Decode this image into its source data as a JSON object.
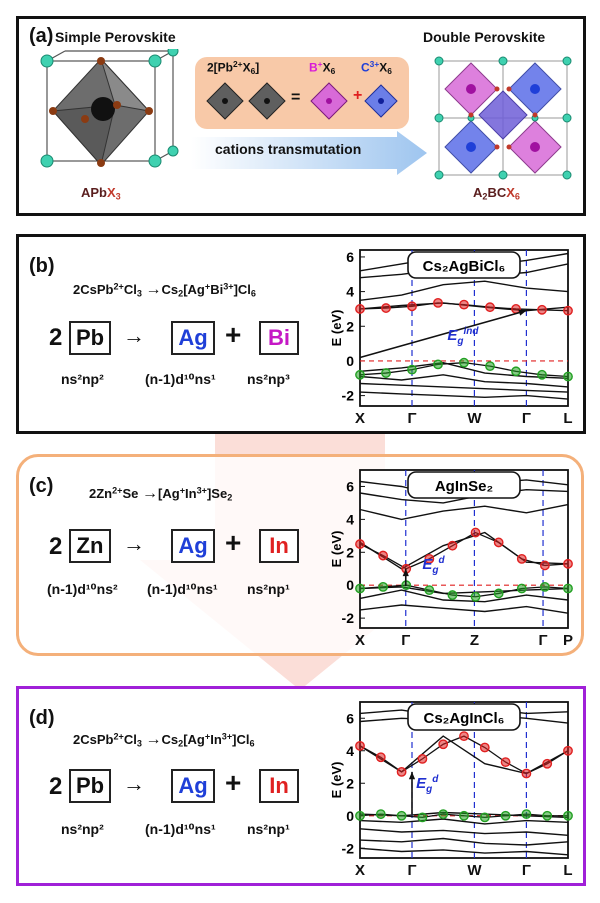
{
  "background_arrow_color": "#f7b5a8",
  "panel_a": {
    "label": "(a)",
    "left_title": "Simple Perovskite",
    "right_title": "Double Perovskite",
    "left_formula": {
      "prefix": "APb",
      "x": "X",
      "x_sub": "3"
    },
    "right_formula": {
      "prefix": "A",
      "sub1": "2",
      "mid": "BC",
      "x": "X",
      "x_sub": "6"
    },
    "equation": {
      "coef": "2[Pb",
      "charge": "2+",
      "x": "X",
      "x_sub": "6",
      "close": "]",
      "eq": "=",
      "b": "B",
      "b_charge": "+",
      "bx": "X",
      "bx_sub": "6",
      "plus": "+",
      "c": "C",
      "c_charge": "3+",
      "cx": "X",
      "cx_sub": "6"
    },
    "arrow_text": "cations transmutation",
    "colors": {
      "equation_bg": "#f8c9a8",
      "arrow": "#9ec5ef",
      "x_red": "#c0392b",
      "magenta": "#d81bd8",
      "blue": "#1f3fd8",
      "cyan": "#3fd1b0"
    }
  },
  "panel_b": {
    "label": "(b)",
    "reaction": {
      "lhs": "2CsPb",
      "lhs_charge": "2+",
      "lhs_cl": "Cl",
      "lhs_cl_sub": "3",
      "arrow": "→",
      "rhs": "Cs",
      "rhs_sub": "2",
      "rhs_br": "[Ag",
      "rhs_ag_charge": "+",
      "rhs_bi": "Bi",
      "rhs_bi_charge": "3+",
      "rhs_close": "]Cl",
      "rhs_cl_sub": "6"
    },
    "coef": "2",
    "from": "Pb",
    "to1": "Ag",
    "plus": "+",
    "to2": "Bi",
    "arrow": "→",
    "config_from": "ns²np²",
    "config_to1": "(n-1)d¹⁰ns¹",
    "config_to2": "ns²np³",
    "box_colors": {
      "to1": "#1f3fd8",
      "to2": "#c518c5"
    },
    "chart_title": "Cs₂AgBiCl₆",
    "gap_label": "E",
    "gap_sub": "g",
    "gap_sup": "ind"
  },
  "panel_c": {
    "label": "(c)",
    "reaction": {
      "lhs": "2Zn",
      "lhs_charge": "2+",
      "lhs_se": "Se",
      "arrow": "→",
      "rhs": "[Ag",
      "rhs_ag_charge": "+",
      "rhs_in": "In",
      "rhs_in_charge": "3+",
      "rhs_close": "]Se",
      "rhs_sub": "2"
    },
    "coef": "2",
    "from": "Zn",
    "to1": "Ag",
    "plus": "+",
    "to2": "In",
    "arrow": "→",
    "config_from": "(n-1)d¹⁰ns²",
    "config_to1": "(n-1)d¹⁰ns¹",
    "config_to2": "ns²np¹",
    "box_colors": {
      "to1": "#1f3fd8",
      "to2": "#e02020"
    },
    "chart_title": "AgInSe₂",
    "gap_label": "E",
    "gap_sub": "g",
    "gap_sup": "d",
    "border_color": "#f4b07a"
  },
  "panel_d": {
    "label": "(d)",
    "reaction": {
      "lhs": "2CsPb",
      "lhs_charge": "2+",
      "lhs_cl": "Cl",
      "lhs_cl_sub": "3",
      "arrow": "→",
      "rhs": "Cs",
      "rhs_sub": "2",
      "rhs_br": "[Ag",
      "rhs_ag_charge": "+",
      "rhs_in": "In",
      "rhs_in_charge": "3+",
      "rhs_close": "]Cl",
      "rhs_cl_sub": "6"
    },
    "coef": "2",
    "from": "Pb",
    "to1": "Ag",
    "plus": "+",
    "to2": "In",
    "arrow": "→",
    "config_from": "ns²np²",
    "config_to1": "(n-1)d¹⁰ns¹",
    "config_to2": "ns²np¹",
    "box_colors": {
      "to1": "#1f3fd8",
      "to2": "#e02020"
    },
    "chart_title": "Cs₂AgInCl₆",
    "gap_label": "E",
    "gap_sub": "g",
    "gap_sup": "d",
    "border_color": "#a020d8"
  },
  "chart_data": [
    {
      "type": "line",
      "title": "Cs₂AgBiCl₆",
      "ylabel": "E (eV)",
      "ylim": [
        -2.6,
        6.4
      ],
      "yticks": [
        "6",
        "4",
        "2",
        "0",
        "-2"
      ],
      "ytick_values": [
        6,
        4,
        2,
        0,
        -2
      ],
      "kpoints": [
        "X",
        "Γ",
        "W",
        "Γ",
        "L"
      ],
      "kpoint_positions": [
        0,
        0.25,
        0.55,
        0.8,
        1
      ],
      "fermi_level": 0,
      "series": [
        {
          "kind": "bands",
          "values": [
            [
              5.2,
              5.6,
              6.0,
              5.5,
              5.8,
              6.2
            ],
            [
              4.8,
              5.0,
              5.3,
              4.9,
              5.1,
              5.6
            ],
            [
              3.5,
              3.8,
              4.4,
              4.6,
              4.2,
              4.0
            ],
            [
              3.0,
              3.2,
              3.35,
              3.1,
              2.9,
              3.1
            ],
            [
              -0.6,
              -0.4,
              -0.1,
              -0.7,
              -0.9,
              -1.0
            ],
            [
              -0.9,
              -1.1,
              -0.8,
              -1.2,
              -1.3,
              -1.5
            ],
            [
              -1.3,
              -1.4,
              -1.5,
              -1.6,
              -1.7,
              -1.8
            ],
            [
              -1.8,
              -1.9,
              -2.0,
              -2.1,
              -2.0,
              -2.2
            ]
          ]
        },
        {
          "kind": "cbm_markers",
          "color": "#e02020",
          "values": [
            3.0,
            3.05,
            3.15,
            3.35,
            3.25,
            3.1,
            3.0,
            2.95,
            2.9
          ]
        },
        {
          "kind": "vbm_markers",
          "color": "#22a022",
          "values": [
            -0.8,
            -0.7,
            -0.5,
            -0.2,
            -0.1,
            -0.3,
            -0.6,
            -0.8,
            -0.9
          ]
        }
      ]
    },
    {
      "type": "line",
      "title": "AgInSe₂",
      "ylabel": "E (eV)",
      "ylim": [
        -2.6,
        7.0
      ],
      "yticks": [
        "6",
        "4",
        "2",
        "0",
        "-2"
      ],
      "ytick_values": [
        6,
        4,
        2,
        0,
        -2
      ],
      "kpoints": [
        "X",
        "Γ",
        "Z",
        "Γ",
        "P"
      ],
      "kpoint_positions": [
        0,
        0.22,
        0.55,
        0.88,
        1
      ],
      "fermi_level": 0,
      "series": [
        {
          "kind": "bands",
          "values": [
            [
              6.3,
              6.0,
              5.4,
              6.2,
              6.4,
              6.1
            ],
            [
              5.6,
              5.2,
              5.0,
              5.5,
              5.8,
              5.7
            ],
            [
              4.6,
              4.0,
              4.5,
              4.8,
              4.4,
              4.9
            ],
            [
              2.6,
              1.0,
              2.4,
              3.2,
              1.4,
              1.3
            ],
            [
              -0.2,
              -0.1,
              -0.5,
              -0.4,
              -0.3,
              -0.2
            ],
            [
              -0.8,
              -0.3,
              -0.9,
              -1.0,
              -0.6,
              -0.9
            ],
            [
              -1.5,
              -1.2,
              -1.4,
              -1.6,
              -1.3,
              -1.7
            ]
          ]
        },
        {
          "kind": "cbm_markers",
          "color": "#e02020",
          "values": [
            2.5,
            1.8,
            1.0,
            1.6,
            2.4,
            3.2,
            2.6,
            1.6,
            1.2,
            1.3
          ]
        },
        {
          "kind": "vbm_markers",
          "color": "#22a022",
          "values": [
            -0.2,
            -0.1,
            0.0,
            -0.3,
            -0.6,
            -0.7,
            -0.5,
            -0.2,
            -0.1,
            -0.2
          ]
        }
      ]
    },
    {
      "type": "line",
      "title": "Cs₂AgInCl₆",
      "ylabel": "E (eV)",
      "ylim": [
        -2.6,
        7.0
      ],
      "yticks": [
        "6",
        "4",
        "2",
        "0",
        "-2"
      ],
      "ytick_values": [
        6,
        4,
        2,
        0,
        -2
      ],
      "kpoints": [
        "X",
        "Γ",
        "W",
        "Γ",
        "L"
      ],
      "kpoint_positions": [
        0,
        0.25,
        0.55,
        0.8,
        1
      ],
      "fermi_level": 0,
      "series": [
        {
          "kind": "bands",
          "values": [
            [
              6.3,
              6.5,
              6.1,
              6.6,
              6.3,
              6.4
            ],
            [
              5.8,
              6.0,
              5.9,
              6.2,
              6.0,
              5.7
            ],
            [
              4.3,
              2.7,
              4.9,
              3.2,
              2.6,
              4.0
            ],
            [
              0.1,
              0.0,
              0.2,
              0.1,
              0.0,
              -0.1
            ],
            [
              -0.3,
              -0.4,
              -0.2,
              -0.5,
              -0.3,
              -0.4
            ],
            [
              -0.8,
              -1.0,
              -0.9,
              -1.1,
              -1.0,
              -1.2
            ],
            [
              -1.5,
              -1.6,
              -1.4,
              -1.7,
              -1.8,
              -1.6
            ],
            [
              -2.0,
              -2.2,
              -2.1,
              -2.3,
              -2.2,
              -2.4
            ]
          ]
        },
        {
          "kind": "cbm_markers",
          "color": "#e02020",
          "values": [
            4.3,
            3.6,
            2.7,
            3.5,
            4.4,
            4.9,
            4.2,
            3.3,
            2.6,
            3.2,
            4.0
          ]
        },
        {
          "kind": "vbm_markers",
          "color": "#22a022",
          "values": [
            0.0,
            0.1,
            0.0,
            -0.1,
            0.1,
            0.0,
            -0.1,
            0.0,
            0.1,
            0.0,
            0.0
          ]
        }
      ]
    }
  ]
}
